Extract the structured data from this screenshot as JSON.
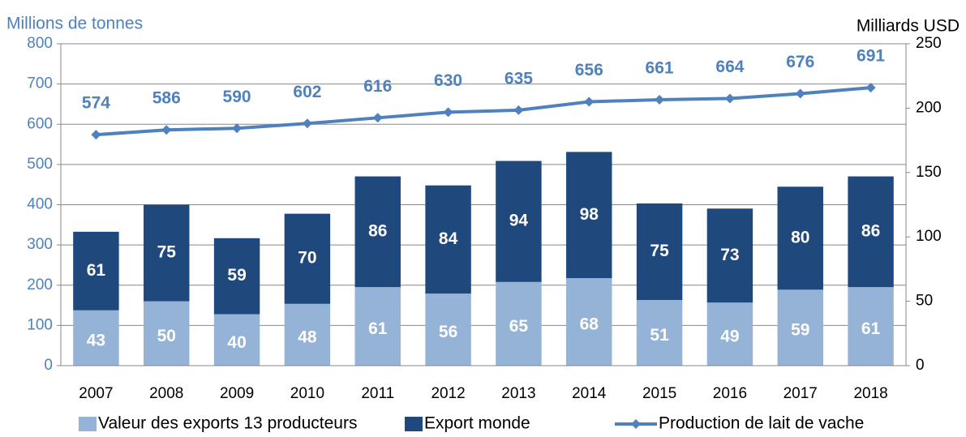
{
  "chart_data": {
    "type": "bar_line",
    "y_label": "Millions de tonnes",
    "y2_label": "Milliards USD",
    "categories": [
      "2007",
      "2008",
      "2009",
      "2010",
      "2011",
      "2012",
      "2013",
      "2014",
      "2015",
      "2016",
      "2017",
      "2018"
    ],
    "series": [
      {
        "name": "Valeur des exports 13 producteurs",
        "color": "#95b3d7",
        "axis": "y2",
        "kind": "bar",
        "values": [
          43,
          50,
          40,
          48,
          61,
          56,
          65,
          68,
          51,
          49,
          59,
          61
        ]
      },
      {
        "name": "Export monde",
        "color": "#1f497d",
        "axis": "y2",
        "kind": "bar",
        "values": [
          61,
          75,
          59,
          70,
          86,
          84,
          94,
          98,
          75,
          73,
          80,
          86
        ]
      },
      {
        "name": "Production de lait de vache",
        "color": "#4f81bd",
        "axis": "y",
        "kind": "line",
        "values": [
          574,
          586,
          590,
          602,
          616,
          630,
          635,
          656,
          661,
          664,
          676,
          691
        ]
      }
    ],
    "ylim": [
      0,
      800
    ],
    "yticks": [
      0,
      100,
      200,
      300,
      400,
      500,
      600,
      700,
      800
    ],
    "y2lim": [
      0,
      250
    ],
    "y2ticks": [
      0,
      50,
      100,
      150,
      200,
      250
    ],
    "grid": true,
    "legend": "bottom"
  }
}
